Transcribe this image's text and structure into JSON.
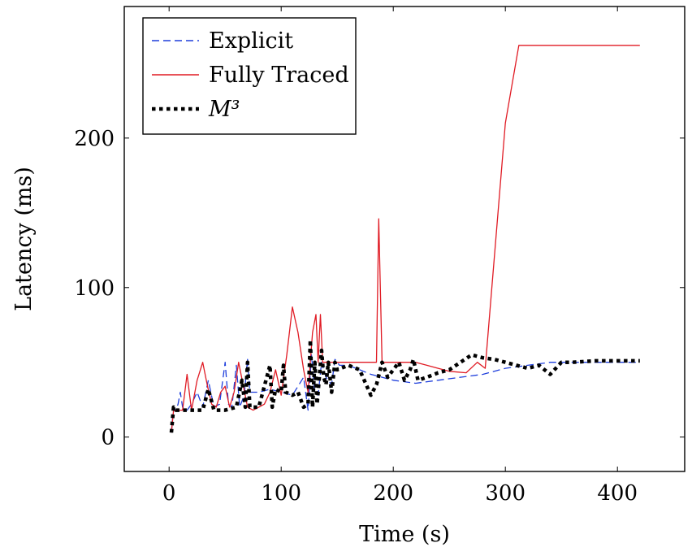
{
  "chart_data": {
    "type": "line",
    "title": "",
    "xlabel": "Time (s)",
    "ylabel": "Latency (ms)",
    "xlim": [
      -40,
      460
    ],
    "ylim": [
      -23,
      288
    ],
    "xticks": [
      0,
      100,
      200,
      300,
      400
    ],
    "yticks": [
      0,
      100,
      200
    ],
    "grid": false,
    "legend_position": "top-left",
    "series": [
      {
        "name": "Explicit",
        "color": "#1f3fdc",
        "style": "dashed",
        "points": [
          [
            2,
            3
          ],
          [
            4,
            20
          ],
          [
            6,
            18
          ],
          [
            8,
            22
          ],
          [
            10,
            30
          ],
          [
            12,
            20
          ],
          [
            16,
            18
          ],
          [
            20,
            22
          ],
          [
            25,
            30
          ],
          [
            30,
            20
          ],
          [
            35,
            38
          ],
          [
            40,
            20
          ],
          [
            45,
            22
          ],
          [
            50,
            50
          ],
          [
            53,
            22
          ],
          [
            56,
            20
          ],
          [
            60,
            48
          ],
          [
            63,
            20
          ],
          [
            67,
            28
          ],
          [
            70,
            52
          ],
          [
            72,
            30
          ],
          [
            80,
            30
          ],
          [
            90,
            32
          ],
          [
            100,
            30
          ],
          [
            110,
            28
          ],
          [
            120,
            40
          ],
          [
            124,
            18
          ],
          [
            127,
            55
          ],
          [
            130,
            30
          ],
          [
            133,
            28
          ],
          [
            136,
            50
          ],
          [
            140,
            40
          ],
          [
            145,
            35
          ],
          [
            148,
            52
          ],
          [
            152,
            48
          ],
          [
            160,
            48
          ],
          [
            170,
            45
          ],
          [
            180,
            42
          ],
          [
            190,
            40
          ],
          [
            200,
            38
          ],
          [
            220,
            36
          ],
          [
            240,
            38
          ],
          [
            260,
            40
          ],
          [
            280,
            42
          ],
          [
            300,
            46
          ],
          [
            320,
            48
          ],
          [
            340,
            50
          ],
          [
            360,
            50
          ],
          [
            380,
            50
          ],
          [
            400,
            50
          ],
          [
            420,
            50
          ]
        ]
      },
      {
        "name": "Fully Traced",
        "color": "#e01b24",
        "style": "solid",
        "points": [
          [
            2,
            3
          ],
          [
            4,
            18
          ],
          [
            8,
            18
          ],
          [
            12,
            18
          ],
          [
            16,
            42
          ],
          [
            20,
            18
          ],
          [
            25,
            38
          ],
          [
            30,
            50
          ],
          [
            34,
            35
          ],
          [
            38,
            22
          ],
          [
            42,
            20
          ],
          [
            46,
            30
          ],
          [
            50,
            34
          ],
          [
            54,
            20
          ],
          [
            58,
            30
          ],
          [
            62,
            50
          ],
          [
            66,
            35
          ],
          [
            70,
            20
          ],
          [
            75,
            18
          ],
          [
            80,
            20
          ],
          [
            85,
            22
          ],
          [
            90,
            30
          ],
          [
            95,
            45
          ],
          [
            100,
            28
          ],
          [
            105,
            55
          ],
          [
            110,
            87
          ],
          [
            115,
            70
          ],
          [
            120,
            45
          ],
          [
            124,
            30
          ],
          [
            128,
            70
          ],
          [
            131,
            82
          ],
          [
            133,
            50
          ],
          [
            135,
            82
          ],
          [
            137,
            50
          ],
          [
            145,
            50
          ],
          [
            155,
            50
          ],
          [
            165,
            50
          ],
          [
            175,
            50
          ],
          [
            185,
            50
          ],
          [
            187,
            146
          ],
          [
            190,
            50
          ],
          [
            200,
            50
          ],
          [
            210,
            50
          ],
          [
            220,
            50
          ],
          [
            230,
            48
          ],
          [
            240,
            46
          ],
          [
            250,
            44
          ],
          [
            265,
            43
          ],
          [
            275,
            50
          ],
          [
            282,
            46
          ],
          [
            300,
            210
          ],
          [
            312,
            262
          ],
          [
            420,
            262
          ]
        ]
      },
      {
        "name": "M³",
        "color": "#000000",
        "style": "dotted",
        "points": [
          [
            2,
            3
          ],
          [
            4,
            20
          ],
          [
            6,
            18
          ],
          [
            10,
            18
          ],
          [
            20,
            18
          ],
          [
            30,
            18
          ],
          [
            35,
            32
          ],
          [
            40,
            18
          ],
          [
            50,
            18
          ],
          [
            60,
            20
          ],
          [
            65,
            38
          ],
          [
            68,
            20
          ],
          [
            70,
            50
          ],
          [
            72,
            20
          ],
          [
            80,
            20
          ],
          [
            90,
            48
          ],
          [
            92,
            20
          ],
          [
            95,
            32
          ],
          [
            100,
            30
          ],
          [
            102,
            48
          ],
          [
            104,
            30
          ],
          [
            110,
            28
          ],
          [
            115,
            30
          ],
          [
            120,
            20
          ],
          [
            124,
            22
          ],
          [
            126,
            65
          ],
          [
            128,
            20
          ],
          [
            130,
            50
          ],
          [
            132,
            22
          ],
          [
            136,
            58
          ],
          [
            138,
            40
          ],
          [
            140,
            35
          ],
          [
            142,
            50
          ],
          [
            145,
            30
          ],
          [
            148,
            50
          ],
          [
            150,
            45
          ],
          [
            160,
            48
          ],
          [
            170,
            45
          ],
          [
            180,
            28
          ],
          [
            185,
            35
          ],
          [
            190,
            50
          ],
          [
            195,
            40
          ],
          [
            200,
            45
          ],
          [
            205,
            50
          ],
          [
            210,
            38
          ],
          [
            215,
            45
          ],
          [
            218,
            52
          ],
          [
            222,
            38
          ],
          [
            230,
            40
          ],
          [
            240,
            43
          ],
          [
            250,
            45
          ],
          [
            260,
            50
          ],
          [
            270,
            55
          ],
          [
            280,
            53
          ],
          [
            290,
            52
          ],
          [
            300,
            50
          ],
          [
            310,
            48
          ],
          [
            320,
            46
          ],
          [
            330,
            48
          ],
          [
            340,
            42
          ],
          [
            350,
            50
          ],
          [
            360,
            50
          ],
          [
            380,
            51
          ],
          [
            400,
            51
          ],
          [
            420,
            51
          ]
        ]
      }
    ]
  }
}
